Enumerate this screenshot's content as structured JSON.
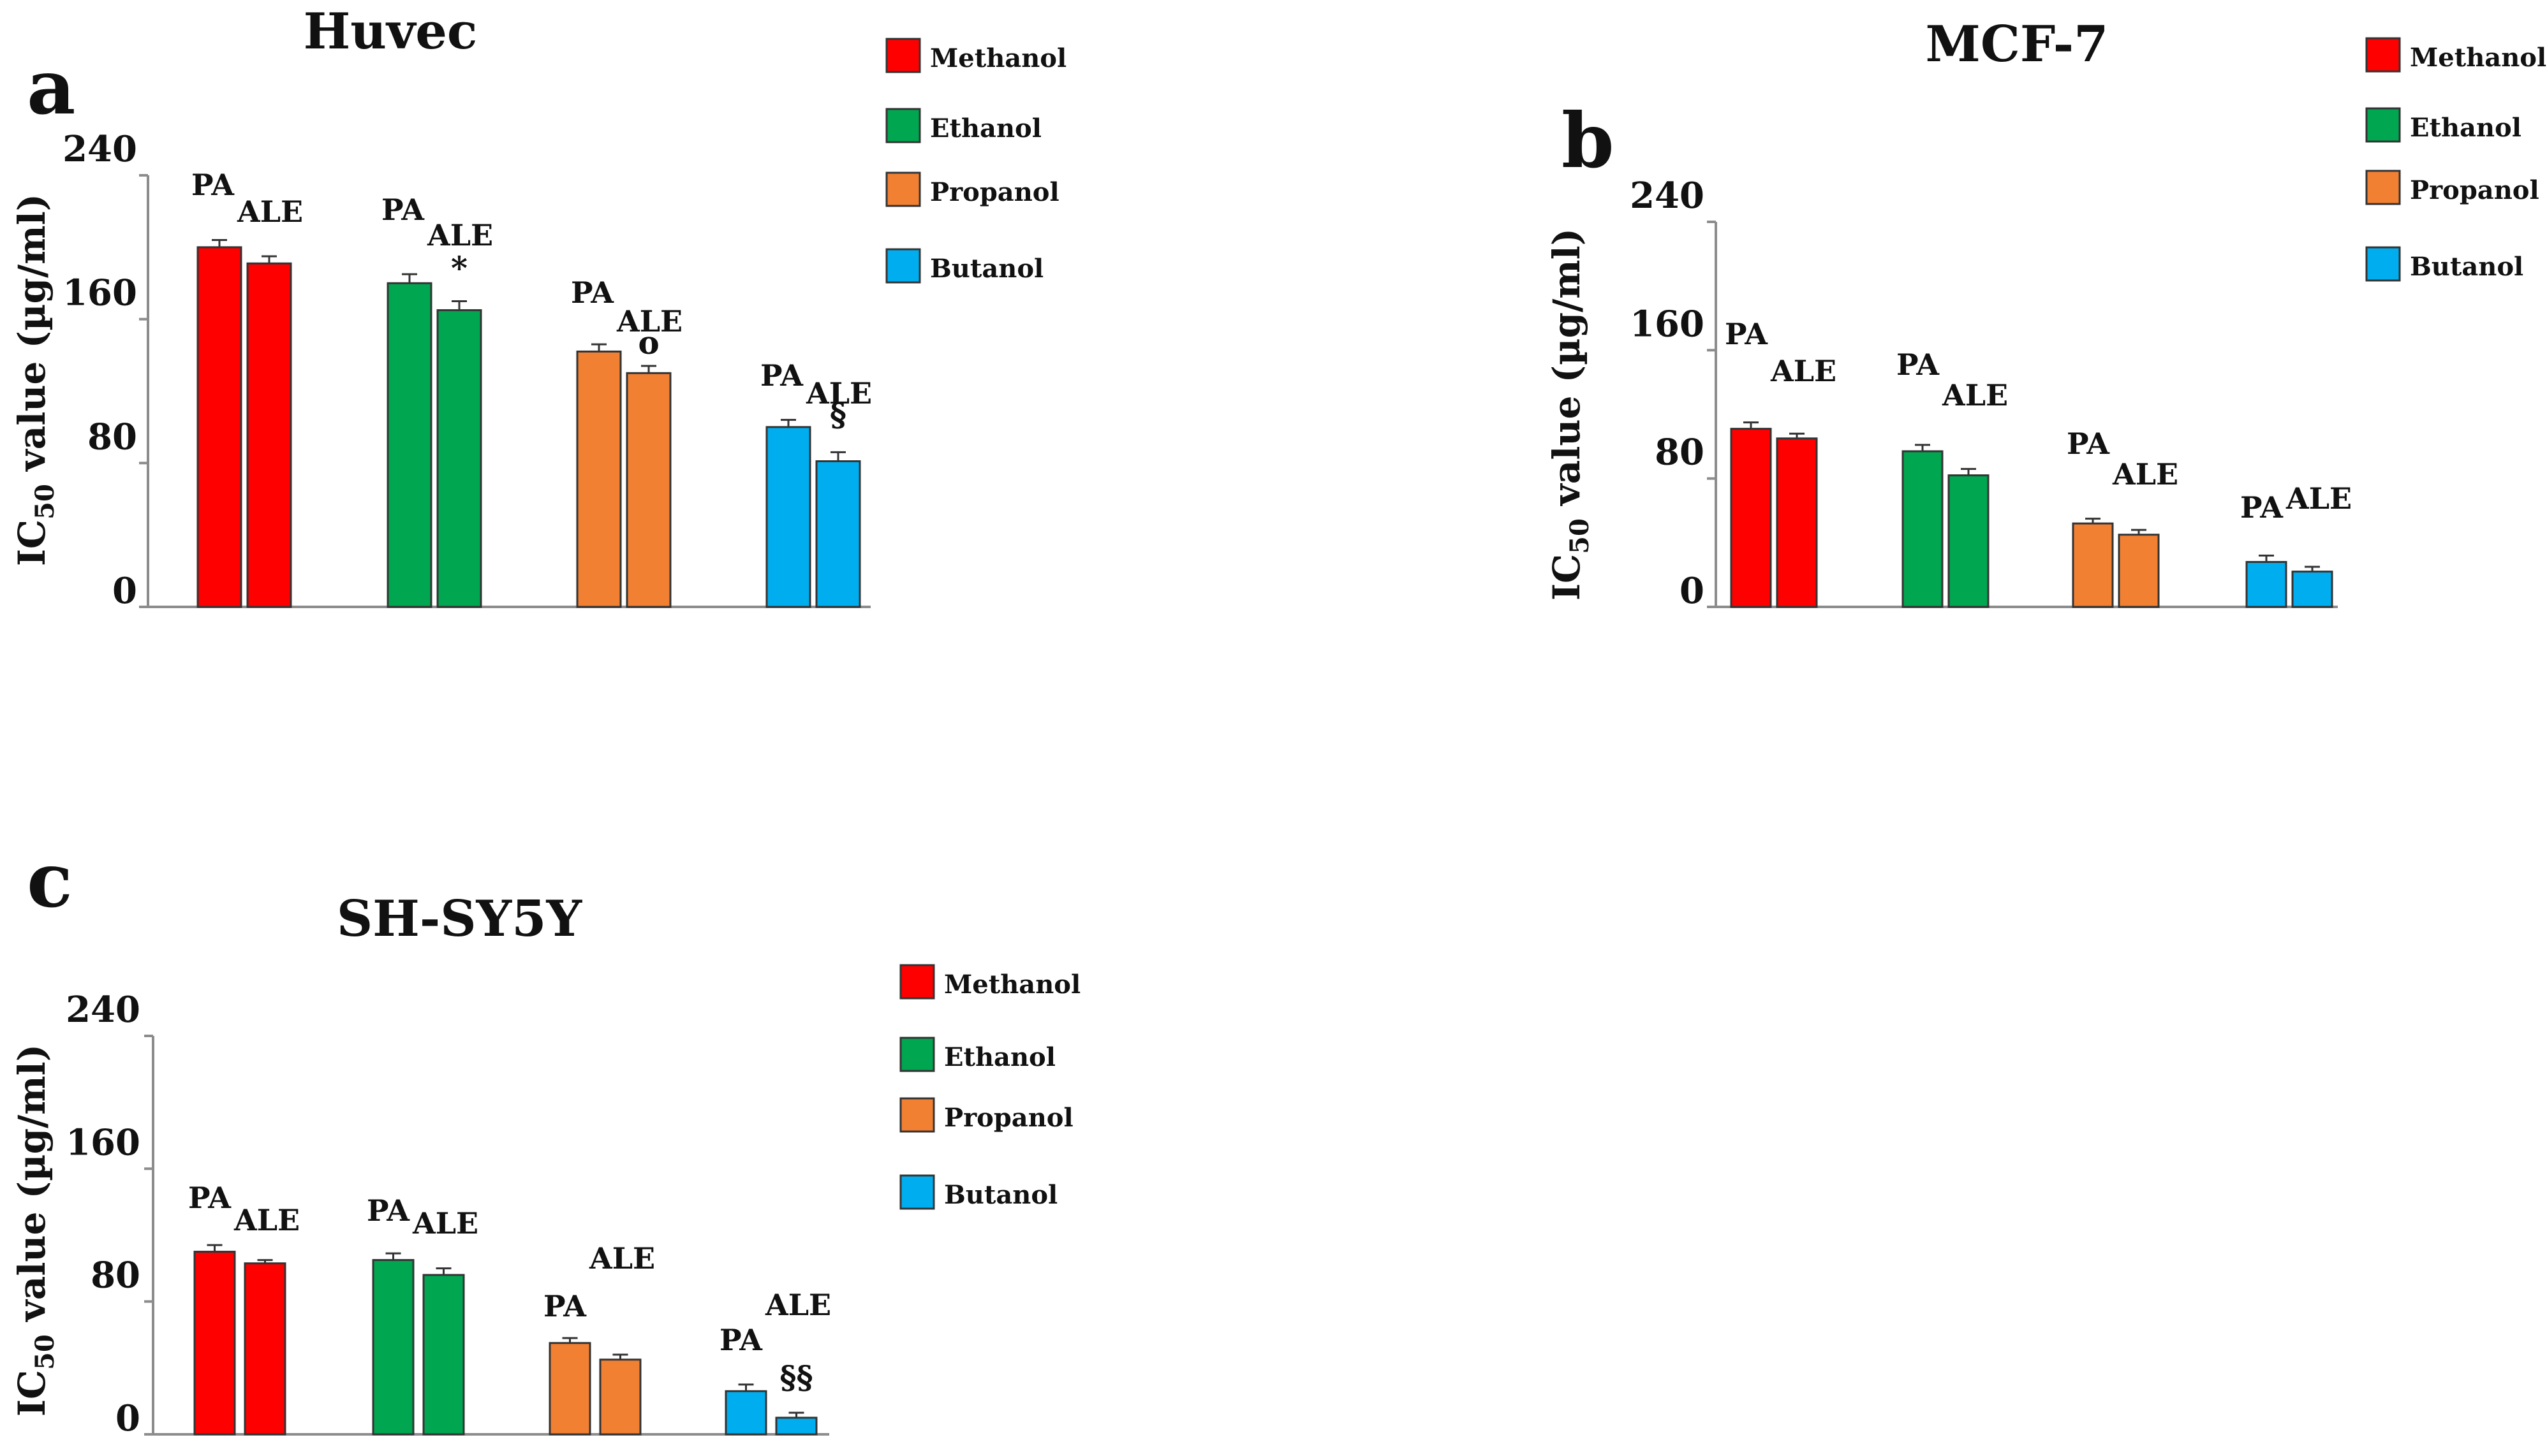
{
  "chart_data": [
    {
      "type": "bar",
      "panel_letter": "a",
      "title": "Huvec",
      "ylabel_main": "IC",
      "ylabel_sub": "50",
      "ylabel_rest": " value (µg/ml)",
      "ylim": [
        0,
        240
      ],
      "yticks": [
        0,
        80,
        160,
        240
      ],
      "categories": [
        "Methanol",
        "Ethanol",
        "Propanol",
        "Butanol"
      ],
      "pair_labels": [
        "PA",
        "ALE"
      ],
      "series": [
        {
          "name": "PA",
          "values": [
            200,
            180,
            142,
            100
          ],
          "errors": [
            4,
            5,
            4,
            4
          ]
        },
        {
          "name": "ALE",
          "values": [
            191,
            165,
            130,
            81
          ],
          "errors": [
            4,
            5,
            4,
            5
          ]
        }
      ],
      "markers": [
        "",
        "*",
        "o",
        "§"
      ],
      "legend": [
        "Methanol",
        "Ethanol",
        "Propanol",
        "Butanol"
      ],
      "colors": [
        "#ff0000",
        "#00a650",
        "#f28033",
        "#00aeef"
      ]
    },
    {
      "type": "bar",
      "panel_letter": "b",
      "title": "MCF-7",
      "ylabel_main": "IC",
      "ylabel_sub": "50",
      "ylabel_rest": " value (µg/ml)",
      "ylim": [
        0,
        240
      ],
      "yticks": [
        0,
        80,
        160,
        240
      ],
      "categories": [
        "Methanol",
        "Ethanol",
        "Propanol",
        "Butanol"
      ],
      "pair_labels": [
        "PA",
        "ALE"
      ],
      "series": [
        {
          "name": "PA",
          "values": [
            111,
            97,
            52,
            28
          ],
          "errors": [
            4,
            4,
            3,
            4
          ]
        },
        {
          "name": "ALE",
          "values": [
            105,
            82,
            45,
            22
          ],
          "errors": [
            3,
            4,
            3,
            3
          ]
        }
      ],
      "markers": [
        "",
        "",
        "",
        ""
      ],
      "legend": [
        "Methanol",
        "Ethanol",
        "Propanol",
        "Butanol"
      ],
      "colors": [
        "#ff0000",
        "#00a650",
        "#f28033",
        "#00aeef"
      ]
    },
    {
      "type": "bar",
      "panel_letter": "c",
      "title": "SH-SY5Y",
      "ylabel_main": "IC",
      "ylabel_sub": "50",
      "ylabel_rest": " value (µg/ml)",
      "ylim": [
        0,
        240
      ],
      "yticks": [
        0,
        80,
        160,
        240
      ],
      "categories": [
        "Methanol",
        "Ethanol",
        "Propanol",
        "Butanol"
      ],
      "pair_labels": [
        "PA",
        "ALE"
      ],
      "series": [
        {
          "name": "PA",
          "values": [
            110,
            105,
            55,
            26
          ],
          "errors": [
            4,
            4,
            3,
            4
          ]
        },
        {
          "name": "ALE",
          "values": [
            103,
            96,
            45,
            10
          ],
          "errors": [
            2,
            4,
            3,
            3
          ]
        }
      ],
      "markers": [
        "",
        "",
        "",
        "§§"
      ],
      "legend": [
        "Methanol",
        "Ethanol",
        "Propanol",
        "Butanol"
      ],
      "colors": [
        "#ff0000",
        "#00a650",
        "#f28033",
        "#00aeef"
      ]
    }
  ]
}
